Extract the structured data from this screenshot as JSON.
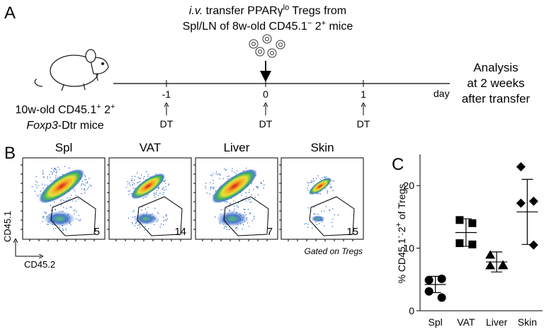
{
  "panel_a": {
    "label": "A",
    "transfer_line1": [
      "i.v.",
      " transfer PPARγ",
      "lo",
      " Tregs from"
    ],
    "transfer_line2": [
      "Spl/LN of 8w-old  CD45.1",
      "−",
      " 2",
      "+",
      " mice"
    ],
    "mouse_line1": [
      "10w-old CD45.1",
      "+",
      " 2",
      "+"
    ],
    "mouse_line2": [
      "Foxp3",
      "-Dtr mice"
    ],
    "timeline_ticks": [
      "-1",
      "0",
      "1"
    ],
    "timeline_unit": "day",
    "treatment": [
      "DT",
      "DT",
      "DT"
    ],
    "analysis": [
      "Analysis",
      "at 2 weeks",
      "after transfer"
    ]
  },
  "panel_b": {
    "label": "B",
    "plots": [
      {
        "tissue": "Spl",
        "gate_percent": 5
      },
      {
        "tissue": "VAT",
        "gate_percent": 14
      },
      {
        "tissue": "Liver",
        "gate_percent": 7
      },
      {
        "tissue": "Skin",
        "gate_percent": 15
      }
    ],
    "y_axis": "CD45.1",
    "x_axis": "CD45.2",
    "note": "Gated on Tregs"
  },
  "chart_data": {
    "type": "dot-plot",
    "panel_label": "C",
    "ylabel": [
      "% CD45.1",
      "-",
      "·2",
      "+",
      " of Tregs"
    ],
    "categories": [
      "Spl",
      "VAT",
      "Liver",
      "Skin"
    ],
    "markers": [
      "circle",
      "square",
      "triangle",
      "diamond"
    ],
    "color": "#000000",
    "points": [
      [
        4.9,
        5.1,
        3.1,
        2.1
      ],
      [
        14.5,
        14.0,
        10.8,
        10.6
      ],
      [
        8.9,
        7.2,
        7.2,
        7.3
      ],
      [
        23.0,
        17.5,
        17.2,
        10.5
      ]
    ],
    "mean": [
      4.2,
      12.5,
      7.8,
      15.8
    ],
    "sd": [
      1.3,
      2.2,
      1.6,
      5.2
    ],
    "ylim": [
      0,
      25
    ],
    "yticks": [
      0,
      10,
      20
    ]
  }
}
